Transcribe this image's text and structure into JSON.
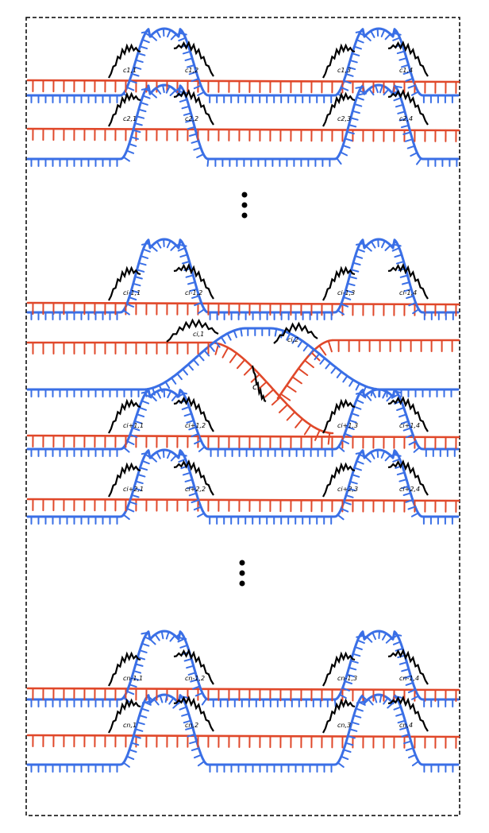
{
  "colors": {
    "red_strand": "#e0482a",
    "blue_strand": "#3a6fe6",
    "crosslinker": "#000000",
    "frame": "#000000"
  },
  "crosslinker_labels": {
    "row_1": [
      "c1,1",
      "c1,2",
      "c1,3",
      "c1,4"
    ],
    "row_2": [
      "c2,1",
      "c2,2",
      "c2,3",
      "c2,4"
    ],
    "row_i_minus_1": [
      "ci-1,1",
      "ci-1,2",
      "ci-1,3",
      "ci-1,4"
    ],
    "row_i": [
      "ci,1",
      "ci,2"
    ],
    "row_i_center": "c",
    "row_i_plus_1": [
      "ci+1,1",
      "ci+1,2",
      "ci+1,3",
      "ci+1,4"
    ],
    "row_i_plus_2": [
      "ci+2,1",
      "ci+2,2",
      "ci+2,3",
      "ci+2,4"
    ],
    "row_n_minus_1": [
      "cn-1,1",
      "cn-1,2",
      "cn-1,3",
      "cn-1,4"
    ],
    "row_n": [
      "cn,1",
      "cn,2",
      "cn,3",
      "cn,4"
    ]
  },
  "ellipsis_symbol": "⋮"
}
